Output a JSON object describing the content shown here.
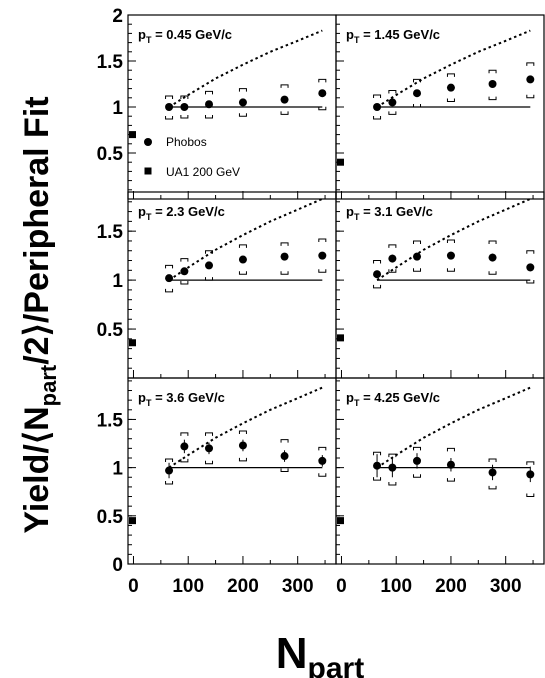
{
  "chart_data": {
    "type": "scatter",
    "ylabel_main": "Yield/",
    "ylabel_bracket_left": "⟨",
    "ylabel_npart": "N",
    "ylabel_npart_sub": "part",
    "ylabel_over2": "/2",
    "ylabel_bracket_right": "⟩",
    "ylabel_tail": "/Peripheral Fit",
    "xlabel": "N",
    "xlabel_sub": "part",
    "xlim": [
      -10,
      370
    ],
    "ylim": [
      0,
      2
    ],
    "x_ticks": [
      "0",
      "100",
      "200",
      "300"
    ],
    "y_ticks": [
      "0",
      "0.5",
      "1",
      "1.5",
      "2"
    ],
    "legend": {
      "position": "panel-1 lower-left",
      "entries": [
        {
          "label": "Phobos",
          "marker": "circle"
        },
        {
          "label": "UA1 200 GeV",
          "marker": "square"
        }
      ]
    },
    "panels": [
      {
        "label_prefix": "p",
        "label_sub": "T",
        "label_value": " = 0.45 GeV/c",
        "phobos_x": [
          65,
          93,
          138,
          200,
          276,
          345
        ],
        "phobos_y": [
          1.0,
          1.0,
          1.03,
          1.05,
          1.08,
          1.15
        ],
        "stat_err": [
          0.02,
          0.02,
          0.02,
          0.02,
          0.03,
          0.03
        ],
        "sys_low": [
          0.87,
          0.88,
          0.88,
          0.9,
          0.92,
          0.97
        ],
        "sys_high": [
          1.12,
          1.12,
          1.17,
          1.2,
          1.24,
          1.3
        ],
        "ua1_y": 0.7,
        "curve_x": [
          65,
          100,
          150,
          200,
          250,
          300,
          345
        ],
        "curve_y": [
          1.0,
          1.13,
          1.31,
          1.46,
          1.6,
          1.72,
          1.83
        ]
      },
      {
        "label_prefix": "p",
        "label_sub": "T",
        "label_value": " = 1.45 GeV/c",
        "phobos_x": [
          65,
          93,
          138,
          200,
          276,
          345
        ],
        "phobos_y": [
          1.0,
          1.05,
          1.15,
          1.21,
          1.25,
          1.3
        ],
        "stat_err": [
          0.02,
          0.02,
          0.02,
          0.03,
          0.03,
          0.03
        ],
        "sys_low": [
          0.87,
          0.92,
          1.0,
          1.06,
          1.08,
          1.1
        ],
        "sys_high": [
          1.13,
          1.18,
          1.3,
          1.36,
          1.4,
          1.48
        ],
        "ua1_y": 0.4,
        "curve_x": [
          65,
          100,
          150,
          200,
          250,
          300,
          345
        ],
        "curve_y": [
          1.0,
          1.13,
          1.31,
          1.46,
          1.6,
          1.72,
          1.83
        ]
      },
      {
        "label_prefix": "p",
        "label_sub": "T",
        "label_value": " = 2.3 GeV/c",
        "phobos_x": [
          65,
          93,
          138,
          200,
          276,
          345
        ],
        "phobos_y": [
          1.02,
          1.09,
          1.15,
          1.21,
          1.24,
          1.25
        ],
        "stat_err": [
          0.02,
          0.03,
          0.03,
          0.03,
          0.03,
          0.03
        ],
        "sys_low": [
          0.88,
          0.96,
          1.0,
          1.06,
          1.06,
          1.08
        ],
        "sys_high": [
          1.15,
          1.22,
          1.3,
          1.36,
          1.38,
          1.42
        ],
        "ua1_y": 0.36,
        "curve_x": [
          65,
          100,
          150,
          200,
          250,
          300,
          345
        ],
        "curve_y": [
          1.0,
          1.13,
          1.31,
          1.46,
          1.6,
          1.72,
          1.83
        ]
      },
      {
        "label_prefix": "p",
        "label_sub": "T",
        "label_value": " = 3.1 GeV/c",
        "phobos_x": [
          65,
          93,
          138,
          200,
          276,
          345
        ],
        "phobos_y": [
          1.06,
          1.22,
          1.24,
          1.25,
          1.23,
          1.13
        ],
        "stat_err": [
          0.04,
          0.04,
          0.04,
          0.04,
          0.04,
          0.04
        ],
        "sys_low": [
          0.92,
          1.08,
          1.09,
          1.09,
          1.06,
          0.97
        ],
        "sys_high": [
          1.2,
          1.36,
          1.4,
          1.41,
          1.4,
          1.3
        ],
        "ua1_y": 0.41,
        "curve_x": [
          65,
          100,
          150,
          200,
          250,
          300,
          345
        ],
        "curve_y": [
          1.0,
          1.13,
          1.31,
          1.46,
          1.6,
          1.72,
          1.83
        ]
      },
      {
        "label_prefix": "p",
        "label_sub": "T",
        "label_value": " = 3.6 GeV/c",
        "phobos_x": [
          65,
          93,
          138,
          200,
          276,
          345
        ],
        "phobos_y": [
          0.97,
          1.22,
          1.2,
          1.23,
          1.12,
          1.07
        ],
        "stat_err": [
          0.08,
          0.07,
          0.06,
          0.06,
          0.06,
          0.06
        ],
        "sys_low": [
          0.83,
          1.06,
          1.04,
          1.07,
          0.96,
          0.91
        ],
        "sys_high": [
          1.09,
          1.36,
          1.36,
          1.38,
          1.29,
          1.21
        ],
        "ua1_y": 0.45,
        "curve_x": [
          65,
          100,
          150,
          200,
          250,
          300,
          345
        ],
        "curve_y": [
          1.0,
          1.13,
          1.31,
          1.46,
          1.6,
          1.72,
          1.83
        ]
      },
      {
        "label_prefix": "p",
        "label_sub": "T",
        "label_value": " = 4.25 GeV/c",
        "phobos_x": [
          65,
          93,
          138,
          200,
          276,
          345
        ],
        "phobos_y": [
          1.02,
          1.0,
          1.07,
          1.03,
          0.95,
          0.93
        ],
        "stat_err": [
          0.12,
          0.1,
          0.08,
          0.07,
          0.08,
          0.08
        ],
        "sys_low": [
          0.87,
          0.82,
          0.9,
          0.86,
          0.78,
          0.7
        ],
        "sys_high": [
          1.16,
          1.14,
          1.21,
          1.2,
          1.09,
          1.06
        ],
        "ua1_y": 0.45,
        "curve_x": [
          65,
          100,
          150,
          200,
          250,
          300,
          345
        ],
        "curve_y": [
          1.0,
          1.13,
          1.31,
          1.46,
          1.6,
          1.72,
          1.83
        ]
      }
    ]
  }
}
